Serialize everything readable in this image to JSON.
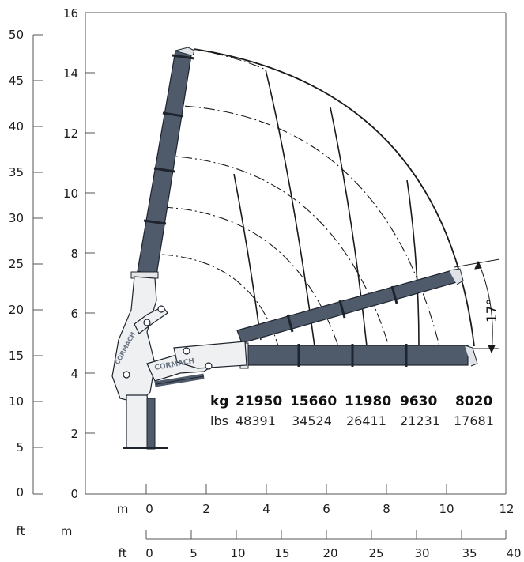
{
  "axes": {
    "left_ft_ticks": [
      "50",
      "45",
      "40",
      "35",
      "30",
      "25",
      "20",
      "15",
      "10",
      "5",
      "0"
    ],
    "left_m_ticks": [
      "16",
      "14",
      "12",
      "10",
      "8",
      "6",
      "4",
      "2",
      "0"
    ],
    "bottom_m_ticks": [
      "0",
      "2",
      "4",
      "6",
      "8",
      "10",
      "12"
    ],
    "bottom_ft_ticks": [
      "0",
      "5",
      "10",
      "15",
      "20",
      "25",
      "30",
      "35",
      "40"
    ],
    "corner_ft": "ft",
    "corner_m": "m",
    "bottom_m_unit": "m",
    "bottom_ft_unit": "ft"
  },
  "capacities": {
    "kg_unit": "kg",
    "lbs_unit": "lbs",
    "kg": [
      "21950",
      "15660",
      "11980",
      "9630",
      "8020"
    ],
    "lbs": [
      "48391",
      "34524",
      "26411",
      "21231",
      "17681"
    ]
  },
  "angle_label": "17°",
  "logo_text": "CORMACH",
  "colors": {
    "boom_fill": "#4f5a6b",
    "boom_stroke": "#1e242e",
    "line": "#1a1a1a",
    "axis": "#666666"
  }
}
